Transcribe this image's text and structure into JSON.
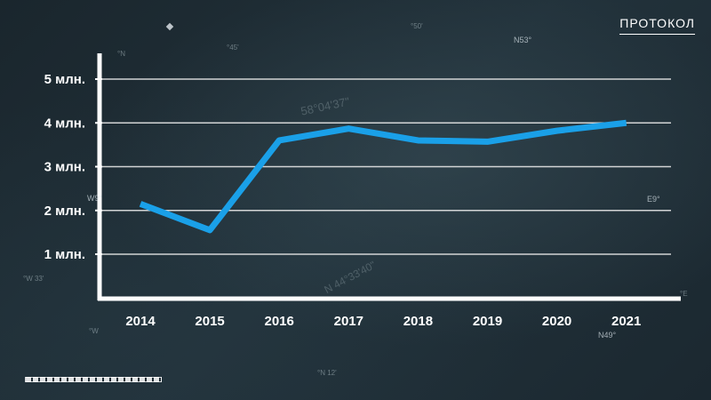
{
  "brand": "ПРОТОКОЛ",
  "map_labels": [
    "°50'",
    "°45'",
    "N53°",
    "°N",
    "W9°",
    "E9°",
    "°W 33'",
    "°W",
    "N49°",
    "°N 12'",
    "°E",
    "58°04'37\"",
    "N 44°33'40\""
  ],
  "colors": {
    "line": "#1aa0e8",
    "axis": "#ffffff",
    "grid": "#e6e6e6",
    "text": "#ffffff"
  },
  "icons": {
    "compass": "compass-icon"
  },
  "chart_data": {
    "type": "line",
    "categories": [
      "2014",
      "2015",
      "2016",
      "2017",
      "2018",
      "2019",
      "2020",
      "2021"
    ],
    "series": [
      {
        "values": [
          2.15,
          1.55,
          3.6,
          3.87,
          3.6,
          3.57,
          3.82,
          4.0
        ]
      }
    ],
    "y_ticks": [
      {
        "value": 1,
        "label": "1 млн."
      },
      {
        "value": 2,
        "label": "2 млн."
      },
      {
        "value": 3,
        "label": "3 млн."
      },
      {
        "value": 4,
        "label": "4 млн."
      },
      {
        "value": 5,
        "label": "5 млн."
      }
    ],
    "ylim": [
      0,
      5
    ],
    "grid": true,
    "legend": "none"
  }
}
